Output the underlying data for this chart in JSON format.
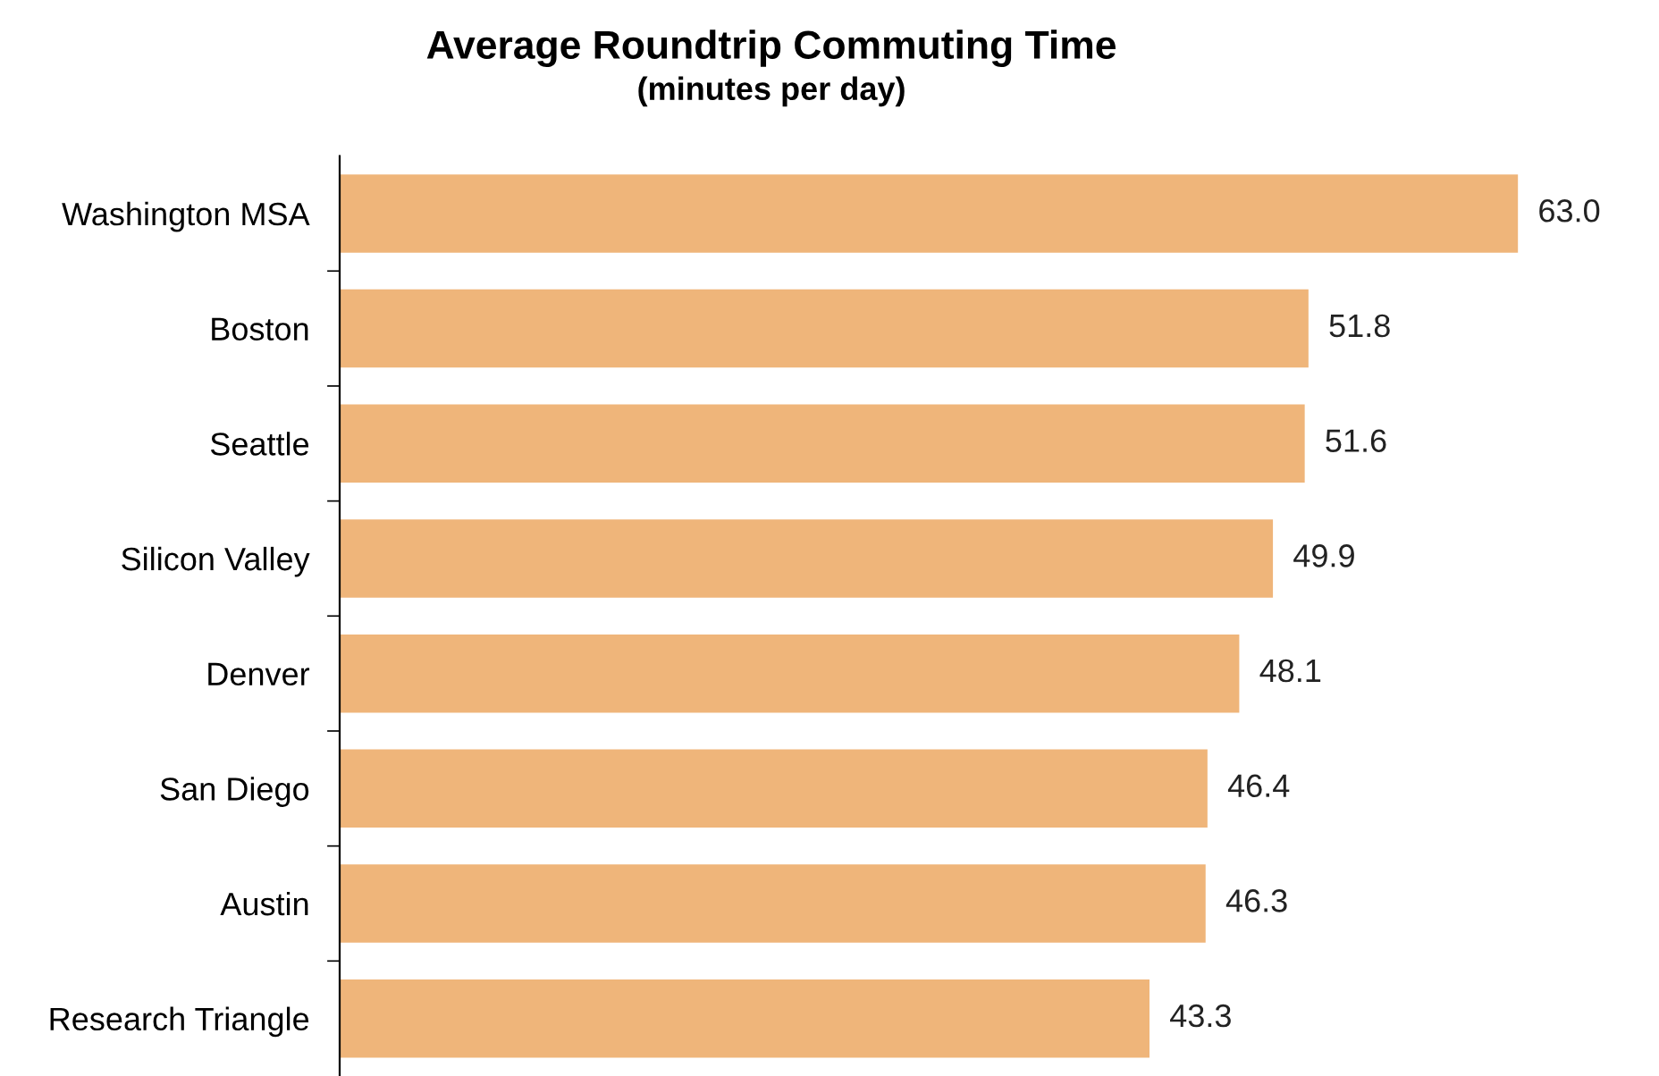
{
  "chart_data": {
    "type": "bar",
    "orientation": "horizontal",
    "title": "Average Roundtrip Commuting Time",
    "subtitle": "(minutes per day)",
    "categories": [
      "Washington MSA",
      "Boston",
      "Seattle",
      "Silicon Valley",
      "Denver",
      "San Diego",
      "Austin",
      "Research Triangle"
    ],
    "values": [
      63.0,
      51.8,
      51.6,
      49.9,
      48.1,
      46.4,
      46.3,
      43.3
    ],
    "value_labels": [
      "63.0",
      "51.8",
      "51.6",
      "49.9",
      "48.1",
      "46.4",
      "46.3",
      "43.3"
    ],
    "color": "#efb57a",
    "grid": false,
    "legend": false
  }
}
